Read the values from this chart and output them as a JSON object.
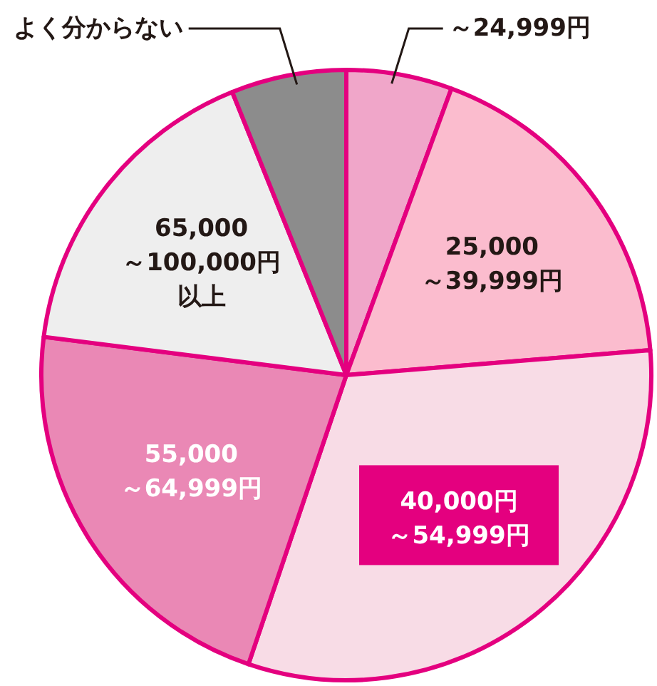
{
  "chart_data": {
    "type": "pie",
    "categories": [
      "～24,999円",
      "25,000～39,999円",
      "40,000円～54,999円",
      "55,000～64,999円",
      "65,000～100,000円以上",
      "よく分からない"
    ],
    "values": [
      5.6,
      18.1,
      31.5,
      21.8,
      16.9,
      6.1
    ],
    "colors": [
      "#f0a6c9",
      "#fbbcce",
      "#f8dce6",
      "#ea88b5",
      "#eeeeee",
      "#8c8c8c"
    ]
  }
}
